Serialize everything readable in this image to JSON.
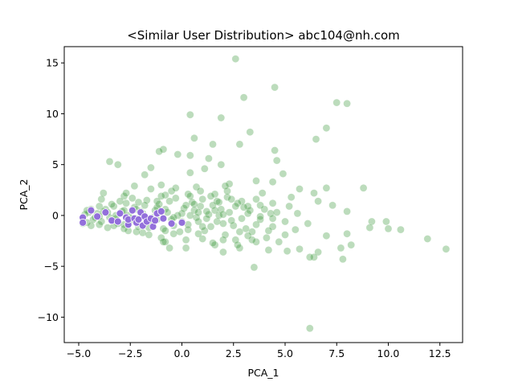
{
  "chart_data": {
    "type": "scatter",
    "title": "<Similar User Distribution> abc104@nh.com",
    "xlabel": "PCA_1",
    "ylabel": "PCA_2",
    "xlim": [
      -5.7,
      13.6
    ],
    "ylim": [
      -12.5,
      16.6
    ],
    "xticks": [
      -5.0,
      -2.5,
      0.0,
      2.5,
      5.0,
      7.5,
      10.0,
      12.5
    ],
    "xtick_labels": [
      "−5.0",
      "−2.5",
      "0.0",
      "2.5",
      "5.0",
      "7.5",
      "10.0",
      "12.5"
    ],
    "yticks": [
      -10,
      -5,
      0,
      5,
      10,
      15
    ],
    "ytick_labels": [
      "−10",
      "−5",
      "0",
      "5",
      "10",
      "15"
    ],
    "grid": false,
    "legend": "none",
    "series": [
      {
        "role": "all-users",
        "color": "#228b22",
        "alpha": 0.3,
        "points": [
          [
            2.6,
            15.4
          ],
          [
            4.5,
            12.6
          ],
          [
            3.0,
            11.6
          ],
          [
            7.5,
            11.1
          ],
          [
            8.0,
            11.0
          ],
          [
            0.4,
            9.9
          ],
          [
            1.9,
            9.6
          ],
          [
            7.0,
            8.6
          ],
          [
            3.3,
            8.2
          ],
          [
            0.6,
            7.6
          ],
          [
            6.5,
            7.5
          ],
          [
            1.5,
            7.0
          ],
          [
            2.8,
            7.0
          ],
          [
            -0.9,
            6.5
          ],
          [
            -1.1,
            6.3
          ],
          [
            4.5,
            6.4
          ],
          [
            -0.2,
            6.0
          ],
          [
            0.4,
            5.9
          ],
          [
            1.3,
            5.6
          ],
          [
            -3.5,
            5.3
          ],
          [
            -3.1,
            5.0
          ],
          [
            1.9,
            5.0
          ],
          [
            4.6,
            5.4
          ],
          [
            -1.5,
            4.7
          ],
          [
            1.1,
            4.6
          ],
          [
            4.9,
            4.1
          ],
          [
            -1.8,
            4.0
          ],
          [
            0.4,
            4.2
          ],
          [
            3.6,
            3.4
          ],
          [
            2.3,
            3.1
          ],
          [
            4.4,
            3.3
          ],
          [
            7.0,
            2.7
          ],
          [
            8.8,
            2.7
          ],
          [
            5.7,
            2.6
          ],
          [
            6.4,
            2.2
          ],
          [
            3.9,
            2.2
          ],
          [
            5.3,
            1.8
          ],
          [
            6.6,
            1.4
          ],
          [
            7.3,
            1.0
          ],
          [
            8.0,
            0.4
          ],
          [
            5.2,
            0.9
          ],
          [
            9.2,
            -0.6
          ],
          [
            9.9,
            -0.6
          ],
          [
            9.1,
            -1.2
          ],
          [
            10.0,
            -1.3
          ],
          [
            10.6,
            -1.4
          ],
          [
            8.0,
            -1.8
          ],
          [
            7.0,
            -2.0
          ],
          [
            8.2,
            -2.9
          ],
          [
            7.7,
            -3.2
          ],
          [
            11.9,
            -2.3
          ],
          [
            12.8,
            -3.3
          ],
          [
            7.8,
            -4.3
          ],
          [
            5.7,
            -3.3
          ],
          [
            6.6,
            -3.6
          ],
          [
            6.4,
            -4.1
          ],
          [
            6.2,
            -4.1
          ],
          [
            5.1,
            -3.5
          ],
          [
            4.2,
            -3.4
          ],
          [
            3.5,
            -5.1
          ],
          [
            6.2,
            -11.1
          ],
          [
            4.7,
            -2.6
          ],
          [
            4.1,
            -2.2
          ],
          [
            3.6,
            -2.6
          ],
          [
            5.5,
            -1.4
          ],
          [
            4.4,
            -1.1
          ],
          [
            6.1,
            -0.8
          ],
          [
            3.8,
            -0.4
          ],
          [
            4.3,
            0.2
          ],
          [
            3.2,
            0.9
          ],
          [
            2.9,
            1.4
          ],
          [
            3.6,
            1.6
          ],
          [
            2.2,
            1.8
          ],
          [
            1.7,
            1.4
          ],
          [
            -1.0,
            3.0
          ],
          [
            0.7,
            2.8
          ],
          [
            -2.3,
            2.9
          ],
          [
            -0.5,
            2.4
          ],
          [
            0.3,
            2.1
          ],
          [
            -3.8,
            2.2
          ],
          [
            -2.8,
            1.9
          ],
          [
            -0.6,
            -3.2
          ],
          [
            0.2,
            -3.2
          ],
          [
            -0.8,
            -2.6
          ],
          [
            1.6,
            -2.9
          ],
          [
            2.0,
            -3.6
          ],
          [
            2.8,
            -3.2
          ],
          [
            3.4,
            -2.4
          ],
          [
            1.0,
            -2.3
          ],
          [
            -1.9,
            -1.7
          ],
          [
            -2.6,
            -1.5
          ],
          [
            -4.8,
            -0.3
          ],
          [
            -4.6,
            -0.7
          ],
          [
            -4.5,
            0.3
          ],
          [
            -4.3,
            -0.4
          ],
          [
            -4.1,
            0.2
          ],
          [
            -3.9,
            -0.6
          ],
          [
            -3.7,
            0.6
          ],
          [
            -3.5,
            -0.2
          ],
          [
            -3.3,
            0.9
          ],
          [
            -3.1,
            -0.8
          ],
          [
            -2.9,
            0.4
          ],
          [
            -2.7,
            1.2
          ],
          [
            -2.5,
            -0.5
          ],
          [
            -2.3,
            0.8
          ],
          [
            -2.1,
            -1.1
          ],
          [
            -1.9,
            0.2
          ],
          [
            -1.7,
            1.5
          ],
          [
            -1.5,
            -0.7
          ],
          [
            -1.3,
            0.5
          ],
          [
            -1.1,
            1.1
          ],
          [
            -0.9,
            -1.3
          ],
          [
            -0.7,
            0.3
          ],
          [
            -0.5,
            -0.4
          ],
          [
            -0.3,
            1.7
          ],
          [
            -0.1,
            -1.6
          ],
          [
            0.1,
            0.7
          ],
          [
            0.3,
            -0.9
          ],
          [
            0.5,
            1.3
          ],
          [
            0.7,
            -0.2
          ],
          [
            0.9,
            0.9
          ],
          [
            1.1,
            -1.5
          ],
          [
            1.3,
            0.1
          ],
          [
            1.5,
            1.0
          ],
          [
            1.7,
            -0.6
          ],
          [
            1.9,
            0.6
          ],
          [
            2.1,
            -1.9
          ],
          [
            2.3,
            0.3
          ],
          [
            2.5,
            -1.0
          ],
          [
            2.7,
            1.2
          ],
          [
            2.9,
            -0.3
          ],
          [
            3.1,
            -1.3
          ],
          [
            3.3,
            0.5
          ],
          [
            -4.7,
            0.1
          ],
          [
            -4.4,
            -1.0
          ],
          [
            -4.0,
            0.9
          ],
          [
            -3.6,
            -1.2
          ],
          [
            -3.2,
            0.0
          ],
          [
            -2.8,
            -0.9
          ],
          [
            -2.4,
            1.7
          ],
          [
            -2.0,
            -0.1
          ],
          [
            -1.6,
            -1.9
          ],
          [
            -1.2,
            0.8
          ],
          [
            -0.8,
            2.0
          ],
          [
            -0.4,
            -1.0
          ],
          [
            0.0,
            0.2
          ],
          [
            0.4,
            1.9
          ],
          [
            0.8,
            -1.8
          ],
          [
            1.2,
            0.4
          ],
          [
            1.6,
            2.1
          ],
          [
            2.0,
            -0.8
          ],
          [
            2.4,
            1.6
          ],
          [
            2.8,
            -1.6
          ],
          [
            3.2,
            0.2
          ],
          [
            3.6,
            -0.9
          ],
          [
            4.0,
            0.6
          ],
          [
            4.4,
            -0.3
          ],
          [
            -4.2,
            -0.2
          ],
          [
            -3.8,
            0.4
          ],
          [
            -3.4,
            -0.5
          ],
          [
            -3.0,
            1.4
          ],
          [
            -2.6,
            0.0
          ],
          [
            -2.2,
            -1.6
          ],
          [
            -1.8,
            1.0
          ],
          [
            -1.4,
            -0.2
          ],
          [
            -1.0,
            -2.2
          ],
          [
            -0.6,
            1.4
          ],
          [
            -0.2,
            0.0
          ],
          [
            0.2,
            -2.4
          ],
          [
            0.6,
            0.5
          ],
          [
            1.0,
            1.6
          ],
          [
            1.4,
            -1.1
          ],
          [
            1.8,
            0.0
          ],
          [
            2.2,
            2.4
          ],
          [
            2.6,
            -2.4
          ],
          [
            3.0,
            0.8
          ],
          [
            3.4,
            -1.6
          ],
          [
            3.8,
            1.0
          ],
          [
            4.2,
            -1.5
          ],
          [
            4.6,
            0.3
          ],
          [
            5.0,
            -0.6
          ],
          [
            -4.6,
            0.5
          ],
          [
            -4.0,
            -0.9
          ],
          [
            -3.4,
            1.1
          ],
          [
            -2.8,
            -1.3
          ],
          [
            -2.2,
            0.6
          ],
          [
            -1.6,
            -0.5
          ],
          [
            -1.0,
            1.9
          ],
          [
            -0.4,
            -1.8
          ],
          [
            0.2,
            1.0
          ],
          [
            0.8,
            -0.6
          ],
          [
            1.4,
            1.9
          ],
          [
            2.0,
            -2.4
          ],
          [
            2.6,
            0.9
          ],
          [
            3.2,
            -2.0
          ],
          [
            3.8,
            -0.1
          ],
          [
            4.4,
            1.2
          ],
          [
            5.0,
            -1.9
          ],
          [
            5.6,
            0.2
          ],
          [
            -3.9,
            1.6
          ],
          [
            -3.3,
            -1.0
          ],
          [
            -2.7,
            2.2
          ],
          [
            -2.1,
            1.3
          ],
          [
            -1.5,
            2.6
          ],
          [
            -0.9,
            -2.6
          ],
          [
            -0.3,
            2.7
          ],
          [
            0.3,
            -1.4
          ],
          [
            0.9,
            2.4
          ],
          [
            1.5,
            -2.7
          ],
          [
            2.1,
            2.9
          ],
          [
            2.7,
            -2.9
          ],
          [
            -1.2,
            -0.4
          ],
          [
            -0.8,
            0.6
          ],
          [
            -0.4,
            -0.2
          ],
          [
            0.0,
            -0.6
          ],
          [
            0.4,
            0.0
          ],
          [
            0.8,
            0.3
          ],
          [
            1.2,
            -0.3
          ],
          [
            1.6,
            0.5
          ],
          [
            2.0,
            0.1
          ],
          [
            2.4,
            -0.5
          ],
          [
            -2.0,
            0.4
          ],
          [
            -2.4,
            -0.3
          ],
          [
            -2.8,
            0.5
          ],
          [
            -3.2,
            -0.3
          ],
          [
            -3.6,
            0.3
          ],
          [
            -4.0,
            -0.1
          ],
          [
            -4.4,
            0.6
          ],
          [
            -4.8,
            -0.8
          ],
          [
            -1.6,
            -1.2
          ],
          [
            -1.2,
            1.4
          ],
          [
            -0.8,
            -1.5
          ],
          [
            0.6,
            1.1
          ],
          [
            1.0,
            -1.1
          ],
          [
            1.8,
            1.3
          ]
        ]
      },
      {
        "role": "similar-users",
        "color": "#9370db",
        "alpha": 1.0,
        "points": [
          [
            -4.8,
            -0.2
          ],
          [
            -4.8,
            -0.7
          ],
          [
            -4.4,
            0.5
          ],
          [
            -4.1,
            -0.1
          ],
          [
            -3.7,
            0.3
          ],
          [
            -3.4,
            -0.5
          ],
          [
            -3.1,
            -0.6
          ],
          [
            -3.0,
            0.2
          ],
          [
            -2.7,
            -0.2
          ],
          [
            -2.6,
            -0.9
          ],
          [
            -2.6,
            -0.4
          ],
          [
            -2.4,
            0.5
          ],
          [
            -2.3,
            -0.3
          ],
          [
            -2.2,
            -0.7
          ],
          [
            -2.1,
            -0.4
          ],
          [
            -2.0,
            0.3
          ],
          [
            -1.9,
            -1.0
          ],
          [
            -1.8,
            -0.1
          ],
          [
            -1.7,
            -0.6
          ],
          [
            -1.5,
            -0.3
          ],
          [
            -1.4,
            -1.1
          ],
          [
            -1.3,
            -0.5
          ],
          [
            -1.2,
            0.2
          ],
          [
            -1.0,
            0.4
          ],
          [
            -0.9,
            -0.3
          ],
          [
            -0.5,
            -0.8
          ],
          [
            0.0,
            -0.7
          ]
        ]
      }
    ]
  }
}
